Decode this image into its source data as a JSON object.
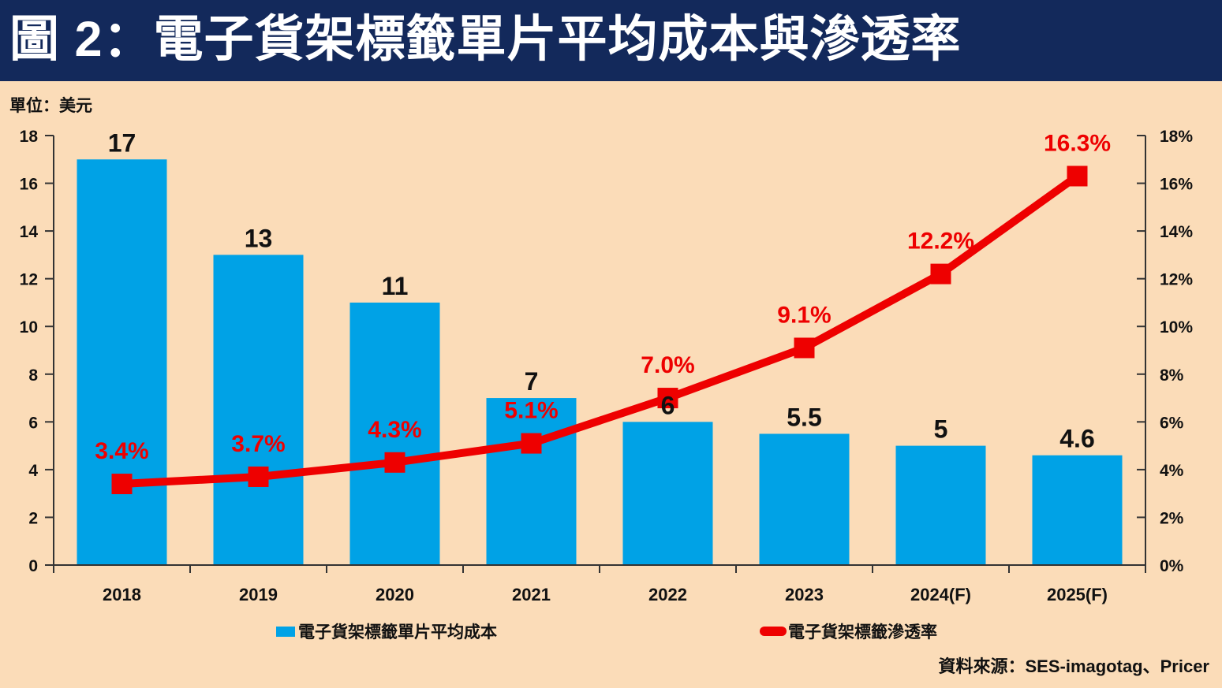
{
  "title": "圖 2：電子貨架標籤單片平均成本與滲透率",
  "unit_label": "單位：美元",
  "source": "資料來源：SES-imagotag、Pricer",
  "legend": [
    {
      "label": "電子貨架標籤單片平均成本",
      "type": "bar",
      "color": "#00A2E6"
    },
    {
      "label": "電子貨架標籤滲透率",
      "type": "line",
      "color": "#EE0000"
    }
  ],
  "colors": {
    "title_bg": "#13295B",
    "title_text": "#FFFFFF",
    "background": "#FBDCB8",
    "bar": "#00A2E6",
    "line": "#EE0000",
    "text": "#111111",
    "axis": "#333333"
  },
  "chart_data": {
    "type": "bar",
    "categories": [
      "2018",
      "2019",
      "2020",
      "2021",
      "2022",
      "2023",
      "2024(F)",
      "2025(F)"
    ],
    "series": [
      {
        "name": "電子貨架標籤單片平均成本",
        "type": "bar",
        "axis": "left",
        "color": "#00A2E6",
        "values": [
          17,
          13,
          11,
          7,
          6,
          5.5,
          5,
          4.6
        ],
        "labels": [
          "17",
          "13",
          "11",
          "7",
          "6",
          "5.5",
          "5",
          "4.6"
        ]
      },
      {
        "name": "電子貨架標籤滲透率",
        "type": "line",
        "axis": "right",
        "color": "#EE0000",
        "values": [
          3.4,
          3.7,
          4.3,
          5.1,
          7.0,
          9.1,
          12.2,
          16.3
        ],
        "labels": [
          "3.4%",
          "3.7%",
          "4.3%",
          "5.1%",
          "7.0%",
          "9.1%",
          "12.2%",
          "16.3%"
        ]
      }
    ],
    "left_axis": {
      "min": 0,
      "max": 18,
      "step": 2,
      "ticks": [
        "0",
        "2",
        "4",
        "6",
        "8",
        "10",
        "12",
        "14",
        "16",
        "18"
      ]
    },
    "right_axis": {
      "min": 0,
      "max": 18,
      "step": 2,
      "ticks": [
        "0%",
        "2%",
        "4%",
        "6%",
        "8%",
        "10%",
        "12%",
        "14%",
        "16%",
        "18%"
      ]
    },
    "grid": false,
    "legend_position": "bottom"
  }
}
